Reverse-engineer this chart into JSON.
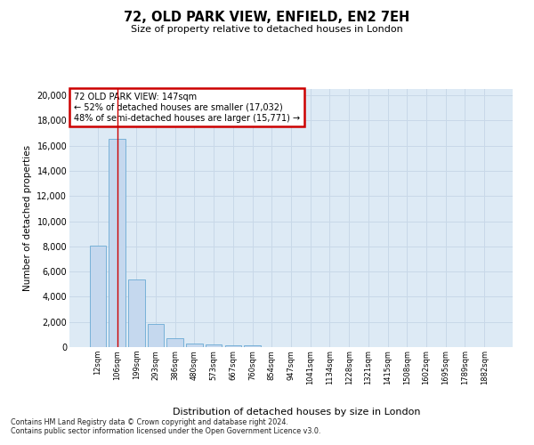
{
  "title": "72, OLD PARK VIEW, ENFIELD, EN2 7EH",
  "subtitle": "Size of property relative to detached houses in London",
  "xlabel": "Distribution of detached houses by size in London",
  "ylabel": "Number of detached properties",
  "footnote1": "Contains HM Land Registry data © Crown copyright and database right 2024.",
  "footnote2": "Contains public sector information licensed under the Open Government Licence v3.0.",
  "annotation_line1": "72 OLD PARK VIEW: 147sqm",
  "annotation_line2": "← 52% of detached houses are smaller (17,032)",
  "annotation_line3": "48% of semi-detached houses are larger (15,771) →",
  "bar_color": "#c5d8ee",
  "bar_edge_color": "#6aaad4",
  "vline_color": "#cc0000",
  "annotation_box_edge": "#cc0000",
  "background_color": "#ffffff",
  "grid_color": "#c8d8e8",
  "ax_bg_color": "#ddeaf5",
  "categories": [
    "12sqm",
    "106sqm",
    "199sqm",
    "293sqm",
    "386sqm",
    "480sqm",
    "573sqm",
    "667sqm",
    "760sqm",
    "854sqm",
    "947sqm",
    "1041sqm",
    "1134sqm",
    "1228sqm",
    "1321sqm",
    "1415sqm",
    "1508sqm",
    "1602sqm",
    "1695sqm",
    "1789sqm",
    "1882sqm"
  ],
  "values": [
    8050,
    16550,
    5350,
    1850,
    680,
    310,
    200,
    175,
    120,
    0,
    0,
    0,
    0,
    0,
    0,
    0,
    0,
    0,
    0,
    0,
    0
  ],
  "ylim": [
    0,
    20500
  ],
  "yticks": [
    0,
    2000,
    4000,
    6000,
    8000,
    10000,
    12000,
    14000,
    16000,
    18000,
    20000
  ]
}
